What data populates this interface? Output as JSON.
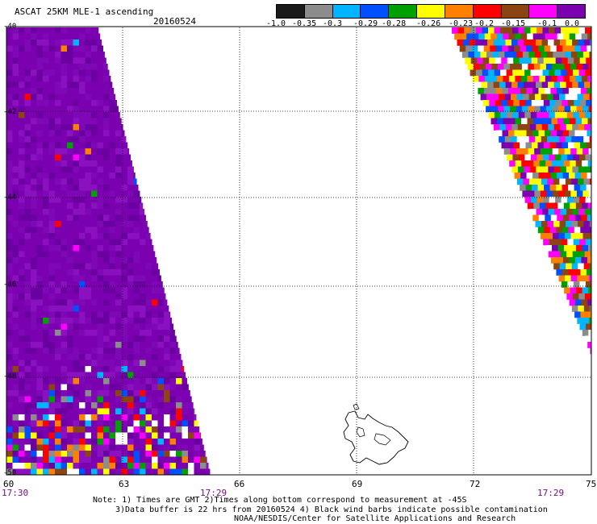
{
  "header": {
    "title": "ASCAT 25KM MLE-1 ascending",
    "date": "20160524"
  },
  "colorbar": {
    "colors": [
      "#1a1a1a",
      "#8c8c8c",
      "#00b4ff",
      "#0050ff",
      "#00a000",
      "#ffff00",
      "#ff8000",
      "#ff0000",
      "#8b4513",
      "#ff00ff",
      "#7a00b0"
    ],
    "labels": [
      "-1.0",
      "-0.35",
      "-0.3",
      "-0.29",
      "-0.28",
      "-0.26",
      "-0.23",
      "-0.2",
      "-0.15",
      "-0.1",
      "0.0"
    ]
  },
  "axes": {
    "lon_labels": [
      "60",
      "63",
      "66",
      "69",
      "72",
      "75"
    ],
    "lat_labels": [
      "-40",
      "-42",
      "-44",
      "-46",
      "-48",
      "-50"
    ],
    "time_labels": [
      "17:30",
      "17:29",
      "17:29"
    ]
  },
  "notes": {
    "line1": "Note: 1) Times are GMT 2)Times along bottom correspond to measurement at -45S",
    "line2": "3)Data buffer is 22 hrs from 20160524 4) Black wind barbs indicate possible contamination",
    "line3": "NOAA/NESDIS/Center for Satellite Applications and Research"
  }
}
